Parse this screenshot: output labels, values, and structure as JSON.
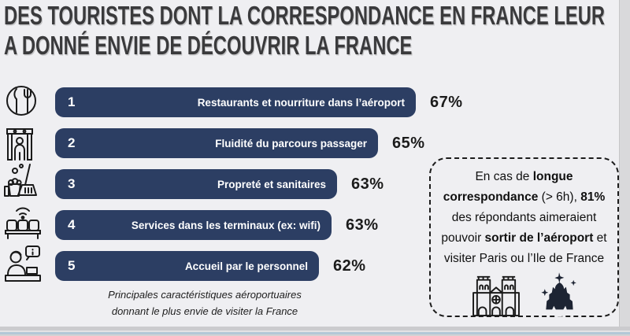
{
  "title": {
    "line1": "DES TOURISTES DONT LA CORRESPONDANCE EN FRANCE LEUR",
    "line2": "A DONNÉ ENVIE DE DÉCOUVRIR LA FRANCE"
  },
  "ranking": {
    "items": [
      {
        "rank": "1",
        "label": "Restaurants et nourriture dans l’aéroport",
        "pct": "67%",
        "icon": "restaurant-plate-icon"
      },
      {
        "rank": "2",
        "label": "Fluidité du parcours passager",
        "pct": "65%",
        "icon": "security-scanner-icon"
      },
      {
        "rank": "3",
        "label": "Propreté et sanitaires",
        "pct": "63%",
        "icon": "cleaning-icon"
      },
      {
        "rank": "4",
        "label": "Services dans les terminaux (ex: wifi)",
        "pct": "63%",
        "icon": "terminal-seating-wifi-icon"
      },
      {
        "rank": "5",
        "label": "Accueil par le personnel",
        "pct": "62%",
        "icon": "information-desk-icon"
      }
    ],
    "caption_line1": "Principales caractéristiques aéroportuaires",
    "caption_line2": "donnant le plus envie de visiter la France"
  },
  "callout": {
    "segments": [
      {
        "text": "En cas de ",
        "bold": false
      },
      {
        "text": "longue correspondance",
        "bold": true
      },
      {
        "text": " (> 6h), ",
        "bold": false
      },
      {
        "text": "81%",
        "bold": true
      },
      {
        "text": " des répondants aimeraient pouvoir ",
        "bold": false
      },
      {
        "text": "sortir de l’aéroport",
        "bold": true
      },
      {
        "text": " et visiter Paris ou l’Ile de France",
        "bold": false
      }
    ],
    "icons": [
      "notre-dame-icon",
      "disney-castle-icon"
    ]
  },
  "colors": {
    "bar": "#2c3e63",
    "bar_text": "#ffffff",
    "background": "#efeff2",
    "title_text": "#3a3a3c",
    "percent_text": "#1b1b1b",
    "callout_border": "#1c1c1c",
    "bottom_accent": "#b2c8d7"
  },
  "chart_data": {
    "type": "bar",
    "orientation": "horizontal",
    "title": "Des touristes dont la correspondance en France leur a donné envie de découvrir la France",
    "categories": [
      "Restaurants et nourriture dans l’aéroport",
      "Fluidité du parcours passager",
      "Propreté et sanitaires",
      "Services dans les terminaux (ex: wifi)",
      "Accueil par le personnel"
    ],
    "values": [
      67,
      65,
      63,
      63,
      62
    ],
    "unit": "%",
    "ranks": [
      1,
      2,
      3,
      4,
      5
    ],
    "note": "Principales caractéristiques aéroportuaires donnant le plus envie de visiter la France",
    "annotation": "En cas de longue correspondance (> 6h), 81% des répondants aimeraient pouvoir sortir de l’aéroport et visiter Paris ou l’Ile de France"
  }
}
